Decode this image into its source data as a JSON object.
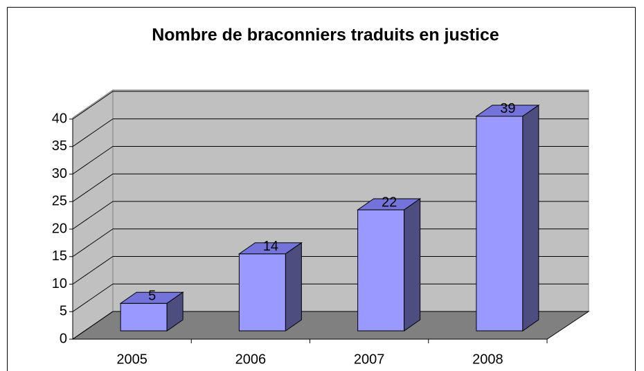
{
  "chart_data": {
    "type": "bar",
    "title": "Nombre de braconniers traduits en justice",
    "categories": [
      "2005",
      "2006",
      "2007",
      "2008"
    ],
    "values": [
      5,
      14,
      22,
      39
    ],
    "color": "#9999ff",
    "ylim": [
      0,
      40
    ],
    "yticks": [
      0,
      5,
      10,
      15,
      20,
      25,
      30,
      35,
      40
    ],
    "grid": true
  }
}
